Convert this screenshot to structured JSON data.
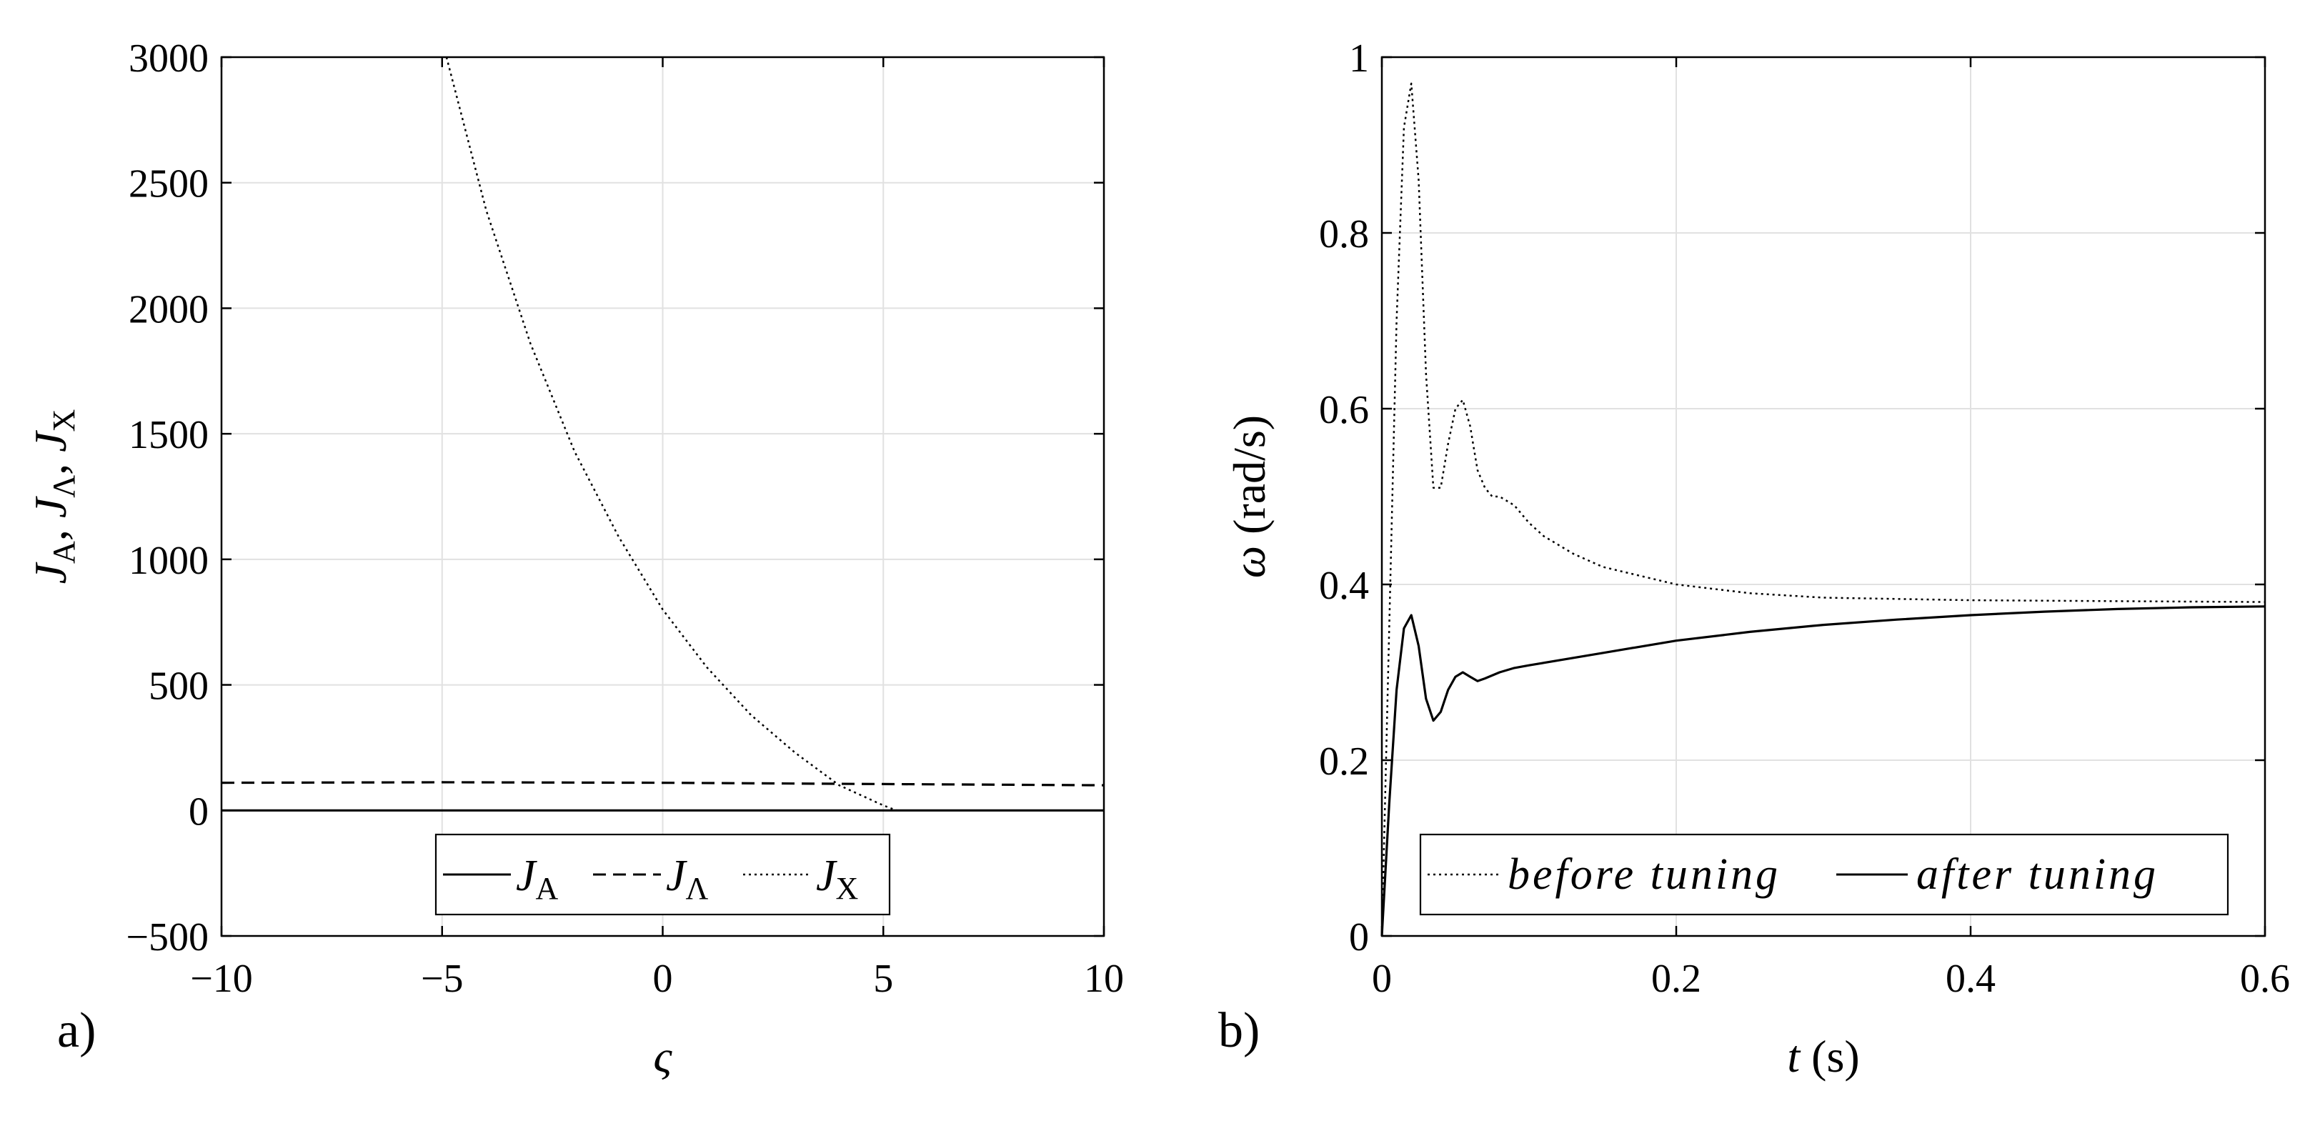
{
  "chart_data": [
    {
      "type": "line",
      "panel_label": "a)",
      "xlabel": "ς",
      "ylabel": "J_A, J_Λ, J_X",
      "xlim": [
        -10,
        10
      ],
      "ylim": [
        -500,
        3000
      ],
      "xticks": [
        -10,
        -5,
        0,
        5,
        10
      ],
      "xtick_labels": [
        "−10",
        "−5",
        "0",
        "5",
        "10"
      ],
      "yticks": [
        -500,
        0,
        500,
        1000,
        1500,
        2000,
        2500,
        3000
      ],
      "ytick_labels": [
        "−500",
        "0",
        "500",
        "1000",
        "1500",
        "2000",
        "2500",
        "3000"
      ],
      "grid": true,
      "legend_position": "bottom-center",
      "series": [
        {
          "name": "J_A",
          "legend_main": "J",
          "legend_sub": "A",
          "style": "solid",
          "x": [
            -10,
            10
          ],
          "y": [
            0,
            0
          ]
        },
        {
          "name": "J_Λ",
          "legend_main": "J",
          "legend_sub": "Λ",
          "style": "dashed",
          "x": [
            -10,
            -5,
            0,
            5,
            10
          ],
          "y": [
            110,
            112,
            110,
            105,
            100
          ]
        },
        {
          "name": "J_X",
          "legend_main": "J",
          "legend_sub": "X",
          "style": "dotted",
          "x": [
            -4.9,
            -4,
            -3,
            -2,
            -1,
            0,
            1,
            2,
            3,
            4,
            5,
            5.3
          ],
          "y": [
            3000,
            2390,
            1860,
            1430,
            1090,
            800,
            570,
            380,
            230,
            100,
            20,
            0
          ]
        }
      ]
    },
    {
      "type": "line",
      "panel_label": "b)",
      "xlabel": "t (s)",
      "xlabel_var": "t",
      "xlabel_unit": " (s)",
      "ylabel": "ω (rad/s)",
      "ylabel_var": "ω",
      "ylabel_unit": " (rad/s)",
      "xlim": [
        0,
        0.6
      ],
      "ylim": [
        0,
        1
      ],
      "xticks": [
        0,
        0.2,
        0.4,
        0.6
      ],
      "xtick_labels": [
        "0",
        "0.2",
        "0.4",
        "0.6"
      ],
      "yticks": [
        0,
        0.2,
        0.4,
        0.6,
        0.8,
        1
      ],
      "ytick_labels": [
        "0",
        "0.2",
        "0.4",
        "0.6",
        "0.8",
        "1"
      ],
      "grid": true,
      "legend_position": "bottom-center",
      "series": [
        {
          "name": "before tuning",
          "style": "dotted",
          "x": [
            0,
            0.005,
            0.01,
            0.015,
            0.02,
            0.025,
            0.03,
            0.035,
            0.04,
            0.045,
            0.05,
            0.055,
            0.06,
            0.065,
            0.07,
            0.075,
            0.08,
            0.09,
            0.1,
            0.11,
            0.13,
            0.15,
            0.2,
            0.25,
            0.3,
            0.4,
            0.5,
            0.6
          ],
          "y": [
            0,
            0.35,
            0.7,
            0.92,
            0.97,
            0.86,
            0.64,
            0.51,
            0.51,
            0.56,
            0.6,
            0.61,
            0.58,
            0.53,
            0.51,
            0.5,
            0.5,
            0.49,
            0.47,
            0.455,
            0.435,
            0.42,
            0.4,
            0.39,
            0.385,
            0.382,
            0.381,
            0.38
          ]
        },
        {
          "name": "after tuning",
          "style": "solid",
          "x": [
            0,
            0.005,
            0.01,
            0.015,
            0.02,
            0.025,
            0.03,
            0.035,
            0.04,
            0.045,
            0.05,
            0.055,
            0.06,
            0.065,
            0.07,
            0.08,
            0.09,
            0.1,
            0.15,
            0.2,
            0.25,
            0.3,
            0.35,
            0.4,
            0.45,
            0.5,
            0.55,
            0.6
          ],
          "y": [
            0,
            0.15,
            0.28,
            0.35,
            0.365,
            0.33,
            0.27,
            0.245,
            0.255,
            0.28,
            0.295,
            0.3,
            0.295,
            0.29,
            0.293,
            0.3,
            0.305,
            0.308,
            0.322,
            0.336,
            0.346,
            0.354,
            0.36,
            0.365,
            0.369,
            0.372,
            0.374,
            0.375
          ]
        }
      ]
    }
  ]
}
